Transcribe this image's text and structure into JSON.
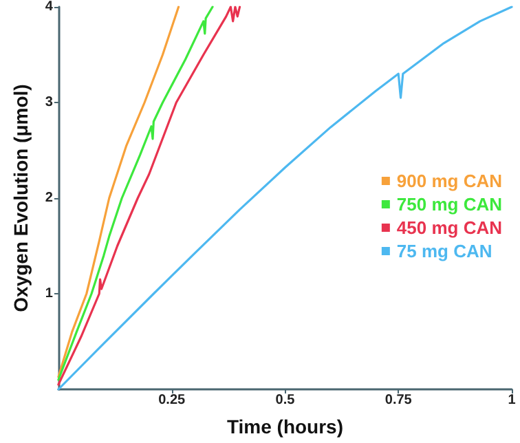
{
  "chart_data": {
    "type": "line",
    "xlabel": "Time (hours)",
    "ylabel": "Oxygen Evolution (μmol)",
    "xlim": [
      0,
      1
    ],
    "ylim": [
      0,
      4
    ],
    "xticks": [
      0.25,
      0.5,
      0.75,
      1
    ],
    "yticks": [
      1,
      2,
      3,
      4
    ],
    "grid": false,
    "legend": "right",
    "marker": "none",
    "line_style": "solid",
    "series": [
      {
        "name": "900 mg CAN",
        "color": "#f7a13a",
        "x": [
          0,
          0.03,
          0.062,
          0.09,
          0.112,
          0.15,
          0.19,
          0.23,
          0.265
        ],
        "values": [
          0.13,
          0.6,
          1,
          1.55,
          2,
          2.55,
          3,
          3.5,
          4
        ]
      },
      {
        "name": "750 mg CAN",
        "color": "#3de83d",
        "x": [
          0,
          0.04,
          0.073,
          0.1,
          0.112,
          0.14,
          0.18,
          0.205,
          0.208,
          0.21,
          0.23,
          0.28,
          0.32,
          0.323,
          0.325,
          0.34
        ],
        "values": [
          0.1,
          0.6,
          1,
          1.4,
          1.6,
          2,
          2.45,
          2.75,
          2.62,
          2.8,
          3,
          3.45,
          3.85,
          3.72,
          3.88,
          4
        ]
      },
      {
        "name": "450 mg CAN",
        "color": "#e8334f",
        "x": [
          0,
          0.05,
          0.09,
          0.092,
          0.095,
          0.13,
          0.175,
          0.2,
          0.26,
          0.32,
          0.37,
          0.38,
          0.385,
          0.39,
          0.395,
          0.4
        ],
        "values": [
          0.05,
          0.55,
          1.0,
          1.15,
          1.05,
          1.5,
          2,
          2.25,
          3,
          3.5,
          3.9,
          4,
          3.85,
          4,
          3.9,
          4
        ]
      },
      {
        "name": "75 mg CAN",
        "color": "#4db8f0",
        "x": [
          0,
          0.1,
          0.21,
          0.3,
          0.4,
          0.5,
          0.6,
          0.7,
          0.75,
          0.755,
          0.76,
          0.85,
          0.93,
          1
        ],
        "values": [
          0,
          0.48,
          1,
          1.42,
          1.88,
          2.32,
          2.74,
          3.12,
          3.3,
          3.05,
          3.3,
          3.62,
          3.85,
          4
        ]
      }
    ]
  }
}
